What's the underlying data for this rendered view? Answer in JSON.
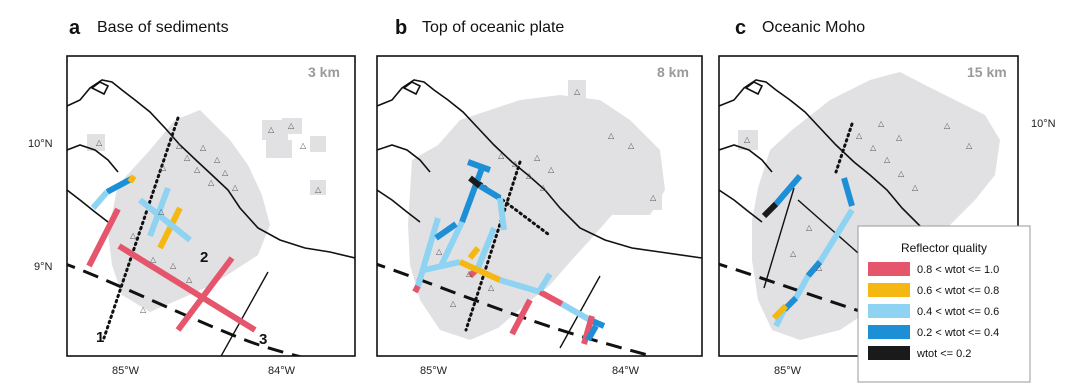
{
  "panels": [
    {
      "label": "a",
      "title": "Base of sediments",
      "depth": "3 km"
    },
    {
      "label": "b",
      "title": "Top of oceanic plate",
      "depth": "8 km"
    },
    {
      "label": "c",
      "title": "Oceanic Moho",
      "depth": "15 km"
    }
  ],
  "lat_ticks": [
    "10°N",
    "9°N"
  ],
  "lon_ticks": [
    "85°W",
    "84°W"
  ],
  "line_numbers": [
    "1",
    "2",
    "3"
  ],
  "station_glyph": "△",
  "legend": {
    "title": "Reflector quality",
    "items": [
      {
        "label": "0.8 < wtot <= 1.0",
        "color": "#e5566d"
      },
      {
        "label": "0.6 < wtot <= 0.8",
        "color": "#f5b812"
      },
      {
        "label": "0.4 < wtot <= 0.6",
        "color": "#8fd3f2"
      },
      {
        "label": "0.2 < wtot <= 0.4",
        "color": "#1d8fd6"
      },
      {
        "label": "wtot <= 0.2",
        "color": "#1a1a1a"
      }
    ]
  },
  "colors": {
    "coverage": "#e1e1e3",
    "coast": "#111111",
    "frame": "#111111"
  }
}
